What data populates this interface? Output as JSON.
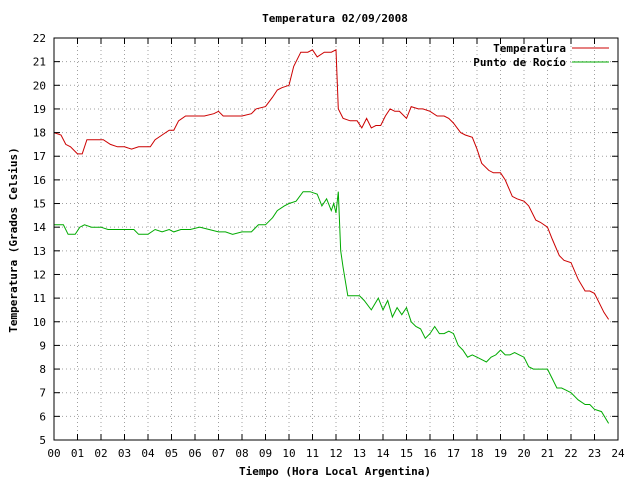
{
  "chart_data": {
    "type": "line",
    "title": "Temperatura 02/09/2008",
    "xlabel": "Tiempo (Hora Local Argentina)",
    "ylabel": "Temperatura (Grados Celsius)",
    "xlim": [
      0,
      24
    ],
    "ylim": [
      5,
      22
    ],
    "x_ticks": [
      "00",
      "01",
      "02",
      "03",
      "04",
      "05",
      "06",
      "07",
      "08",
      "09",
      "10",
      "11",
      "12",
      "13",
      "14",
      "15",
      "16",
      "17",
      "18",
      "19",
      "20",
      "21",
      "22",
      "23",
      "24"
    ],
    "y_ticks": [
      "5",
      "6",
      "7",
      "8",
      "9",
      "10",
      "11",
      "12",
      "13",
      "14",
      "15",
      "16",
      "17",
      "18",
      "19",
      "20",
      "21",
      "22"
    ],
    "grid": true,
    "legend_position": "top-right",
    "series": [
      {
        "name": "Temperatura",
        "color": "#cc0000",
        "x": [
          0,
          0.3,
          0.5,
          0.7,
          1.0,
          1.2,
          1.4,
          1.8,
          2.1,
          2.4,
          2.7,
          3.0,
          3.3,
          3.6,
          3.9,
          4.1,
          4.3,
          4.6,
          4.9,
          5.1,
          5.3,
          5.6,
          6.0,
          6.4,
          6.8,
          7.0,
          7.2,
          7.6,
          8.0,
          8.4,
          8.6,
          9.0,
          9.3,
          9.5,
          9.7,
          10.0,
          10.2,
          10.5,
          10.8,
          11.0,
          11.2,
          11.5,
          11.8,
          12.0,
          12.1,
          12.3,
          12.6,
          12.9,
          13.1,
          13.3,
          13.5,
          13.7,
          13.9,
          14.1,
          14.3,
          14.5,
          14.7,
          15.0,
          15.2,
          15.5,
          15.7,
          16.0,
          16.3,
          16.6,
          16.8,
          17.0,
          17.3,
          17.5,
          17.8,
          18.0,
          18.2,
          18.5,
          18.7,
          19.0,
          19.2,
          19.5,
          19.7,
          20.0,
          20.2,
          20.5,
          20.7,
          21.0,
          21.2,
          21.5,
          21.7,
          22.0,
          22.3,
          22.6,
          22.8,
          23.0,
          23.2,
          23.4,
          23.6
        ],
        "values": [
          18.0,
          17.9,
          17.5,
          17.4,
          17.1,
          17.1,
          17.7,
          17.7,
          17.7,
          17.5,
          17.4,
          17.4,
          17.3,
          17.4,
          17.4,
          17.4,
          17.7,
          17.9,
          18.1,
          18.1,
          18.5,
          18.7,
          18.7,
          18.7,
          18.8,
          18.9,
          18.7,
          18.7,
          18.7,
          18.8,
          19.0,
          19.1,
          19.5,
          19.8,
          19.9,
          20.0,
          20.8,
          21.4,
          21.4,
          21.5,
          21.2,
          21.4,
          21.4,
          21.5,
          19.0,
          18.6,
          18.5,
          18.5,
          18.2,
          18.6,
          18.2,
          18.3,
          18.3,
          18.7,
          19.0,
          18.9,
          18.9,
          18.6,
          19.1,
          19.0,
          19.0,
          18.9,
          18.7,
          18.7,
          18.6,
          18.4,
          18.0,
          17.9,
          17.8,
          17.3,
          16.7,
          16.4,
          16.3,
          16.3,
          16.0,
          15.3,
          15.2,
          15.1,
          14.9,
          14.3,
          14.2,
          14.0,
          13.5,
          12.8,
          12.6,
          12.5,
          11.8,
          11.3,
          11.3,
          11.2,
          10.8,
          10.4,
          10.1
        ]
      },
      {
        "name": "Punto de Rocío",
        "color": "#00aa00",
        "x": [
          0,
          0.4,
          0.6,
          0.9,
          1.1,
          1.3,
          1.6,
          2.0,
          2.3,
          2.6,
          3.0,
          3.4,
          3.6,
          4.0,
          4.3,
          4.6,
          4.9,
          5.1,
          5.4,
          5.8,
          6.2,
          6.6,
          7.0,
          7.3,
          7.6,
          8.0,
          8.4,
          8.7,
          9.0,
          9.3,
          9.5,
          9.8,
          10.0,
          10.3,
          10.6,
          10.9,
          11.2,
          11.4,
          11.6,
          11.8,
          11.9,
          12.0,
          12.1,
          12.2,
          12.3,
          12.5,
          12.8,
          13.0,
          13.2,
          13.5,
          13.8,
          14.0,
          14.2,
          14.4,
          14.6,
          14.8,
          15.0,
          15.2,
          15.4,
          15.6,
          15.8,
          16.0,
          16.2,
          16.4,
          16.6,
          16.8,
          17.0,
          17.2,
          17.4,
          17.6,
          17.8,
          18.0,
          18.2,
          18.4,
          18.6,
          18.8,
          19.0,
          19.2,
          19.4,
          19.6,
          19.8,
          20.0,
          20.2,
          20.4,
          20.6,
          20.8,
          21.0,
          21.2,
          21.4,
          21.6,
          21.8,
          22.0,
          22.3,
          22.6,
          22.8,
          23.0,
          23.3,
          23.6
        ],
        "values": [
          14.1,
          14.1,
          13.7,
          13.7,
          14.0,
          14.1,
          14.0,
          14.0,
          13.9,
          13.9,
          13.9,
          13.9,
          13.7,
          13.7,
          13.9,
          13.8,
          13.9,
          13.8,
          13.9,
          13.9,
          14.0,
          13.9,
          13.8,
          13.8,
          13.7,
          13.8,
          13.8,
          14.1,
          14.1,
          14.4,
          14.7,
          14.9,
          15.0,
          15.1,
          15.5,
          15.5,
          15.4,
          14.9,
          15.2,
          14.7,
          15.0,
          14.6,
          15.5,
          13.0,
          12.3,
          11.1,
          11.1,
          11.1,
          10.9,
          10.5,
          11.0,
          10.5,
          10.9,
          10.2,
          10.6,
          10.3,
          10.6,
          10.0,
          9.8,
          9.7,
          9.3,
          9.5,
          9.8,
          9.5,
          9.5,
          9.6,
          9.5,
          9.0,
          8.8,
          8.5,
          8.6,
          8.5,
          8.4,
          8.3,
          8.5,
          8.6,
          8.8,
          8.6,
          8.6,
          8.7,
          8.6,
          8.5,
          8.1,
          8.0,
          8.0,
          8.0,
          8.0,
          7.6,
          7.2,
          7.2,
          7.1,
          7.0,
          6.7,
          6.5,
          6.5,
          6.3,
          6.2,
          5.7
        ]
      }
    ]
  }
}
